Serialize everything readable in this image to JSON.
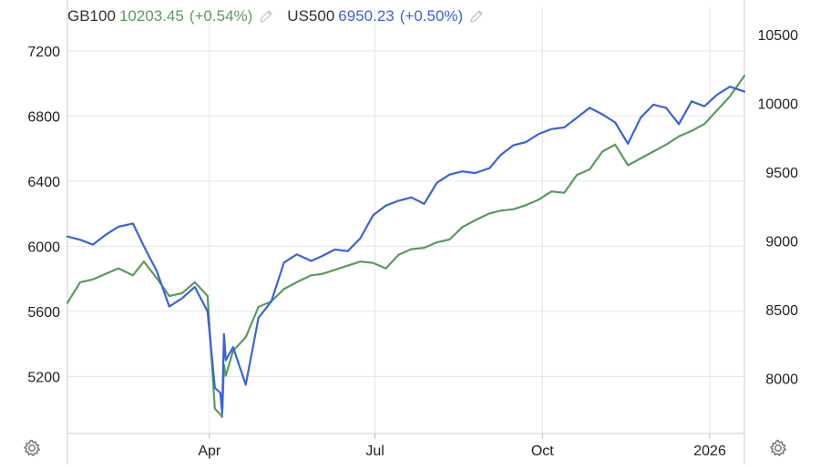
{
  "legend": {
    "series1": {
      "symbol": "GB100",
      "value": "10203.45",
      "change": "(+0.54%)",
      "color": "#5a9a5e",
      "edit_icon": "pencil-icon"
    },
    "series2": {
      "symbol": "US500",
      "value": "6950.23",
      "change": "(+0.50%)",
      "color": "#3a63d8",
      "edit_icon": "pencil-icon"
    }
  },
  "settings_icons": [
    "gear-icon",
    "gear-icon"
  ],
  "chart_data": {
    "type": "line",
    "grid": true,
    "x_ticks": [
      "Apr",
      "Jul",
      "Oct",
      "2026"
    ],
    "left_axis": {
      "series": "US500",
      "ticks": [
        5200,
        5600,
        6000,
        6400,
        6800,
        7200
      ],
      "range": [
        4850,
        7300
      ]
    },
    "right_axis": {
      "series": "GB100",
      "ticks": [
        8000,
        8500,
        9000,
        9500,
        10000,
        10500
      ],
      "range": [
        7600,
        10500
      ]
    },
    "series": [
      {
        "name": "US500",
        "axis": "left",
        "color": "#3a63d8",
        "x": [
          "2025-01-13",
          "2025-01-20",
          "2025-01-27",
          "2025-02-03",
          "2025-02-10",
          "2025-02-18",
          "2025-02-24",
          "2025-03-03",
          "2025-03-10",
          "2025-03-17",
          "2025-03-24",
          "2025-03-31",
          "2025-04-04",
          "2025-04-07",
          "2025-04-08",
          "2025-04-09",
          "2025-04-10",
          "2025-04-14",
          "2025-04-21",
          "2025-04-28",
          "2025-05-05",
          "2025-05-12",
          "2025-05-19",
          "2025-05-27",
          "2025-06-02",
          "2025-06-09",
          "2025-06-16",
          "2025-06-23",
          "2025-06-30",
          "2025-07-07",
          "2025-07-14",
          "2025-07-21",
          "2025-07-28",
          "2025-08-04",
          "2025-08-11",
          "2025-08-18",
          "2025-08-25",
          "2025-09-02",
          "2025-09-08",
          "2025-09-15",
          "2025-09-22",
          "2025-09-29",
          "2025-10-06",
          "2025-10-13",
          "2025-10-20",
          "2025-10-27",
          "2025-11-03",
          "2025-11-10",
          "2025-11-17",
          "2025-11-24",
          "2025-12-01",
          "2025-12-08",
          "2025-12-15",
          "2025-12-22",
          "2025-12-29",
          "2026-01-05",
          "2026-01-12",
          "2026-01-20"
        ],
        "y": [
          6060,
          6040,
          6010,
          6070,
          6120,
          6140,
          6000,
          5850,
          5630,
          5680,
          5750,
          5600,
          5130,
          5100,
          4980,
          5460,
          5300,
          5380,
          5150,
          5560,
          5660,
          5900,
          5950,
          5910,
          5940,
          5980,
          5970,
          6050,
          6190,
          6250,
          6280,
          6300,
          6260,
          6390,
          6440,
          6460,
          6450,
          6480,
          6560,
          6620,
          6640,
          6690,
          6720,
          6730,
          6790,
          6850,
          6810,
          6760,
          6630,
          6790,
          6870,
          6850,
          6750,
          6890,
          6860,
          6930,
          6980,
          6950
        ]
      },
      {
        "name": "GB100",
        "axis": "right",
        "color": "#5a9a5e",
        "x": [
          "2025-01-13",
          "2025-01-20",
          "2025-01-27",
          "2025-02-03",
          "2025-02-10",
          "2025-02-18",
          "2025-02-24",
          "2025-03-03",
          "2025-03-10",
          "2025-03-17",
          "2025-03-24",
          "2025-03-31",
          "2025-04-04",
          "2025-04-07",
          "2025-04-08",
          "2025-04-09",
          "2025-04-10",
          "2025-04-14",
          "2025-04-21",
          "2025-04-28",
          "2025-05-05",
          "2025-05-12",
          "2025-05-19",
          "2025-05-27",
          "2025-06-02",
          "2025-06-09",
          "2025-06-16",
          "2025-06-23",
          "2025-06-30",
          "2025-07-07",
          "2025-07-14",
          "2025-07-21",
          "2025-07-28",
          "2025-08-04",
          "2025-08-11",
          "2025-08-18",
          "2025-08-25",
          "2025-09-02",
          "2025-09-08",
          "2025-09-15",
          "2025-09-22",
          "2025-09-29",
          "2025-10-06",
          "2025-10-13",
          "2025-10-20",
          "2025-10-27",
          "2025-11-03",
          "2025-11-10",
          "2025-11-17",
          "2025-11-24",
          "2025-12-01",
          "2025-12-08",
          "2025-12-15",
          "2025-12-22",
          "2025-12-29",
          "2026-01-05",
          "2026-01-12",
          "2026-01-20"
        ],
        "y": [
          8550,
          8700,
          8720,
          8760,
          8800,
          8750,
          8850,
          8730,
          8600,
          8620,
          8700,
          8600,
          7780,
          7740,
          7720,
          8100,
          8020,
          8200,
          8300,
          8520,
          8560,
          8650,
          8700,
          8750,
          8760,
          8790,
          8820,
          8850,
          8840,
          8800,
          8900,
          8940,
          8950,
          8990,
          9010,
          9100,
          9150,
          9200,
          9220,
          9230,
          9260,
          9300,
          9360,
          9350,
          9480,
          9520,
          9650,
          9700,
          9550,
          9600,
          9650,
          9700,
          9760,
          9800,
          9850,
          9950,
          10050,
          10200
        ]
      }
    ]
  }
}
